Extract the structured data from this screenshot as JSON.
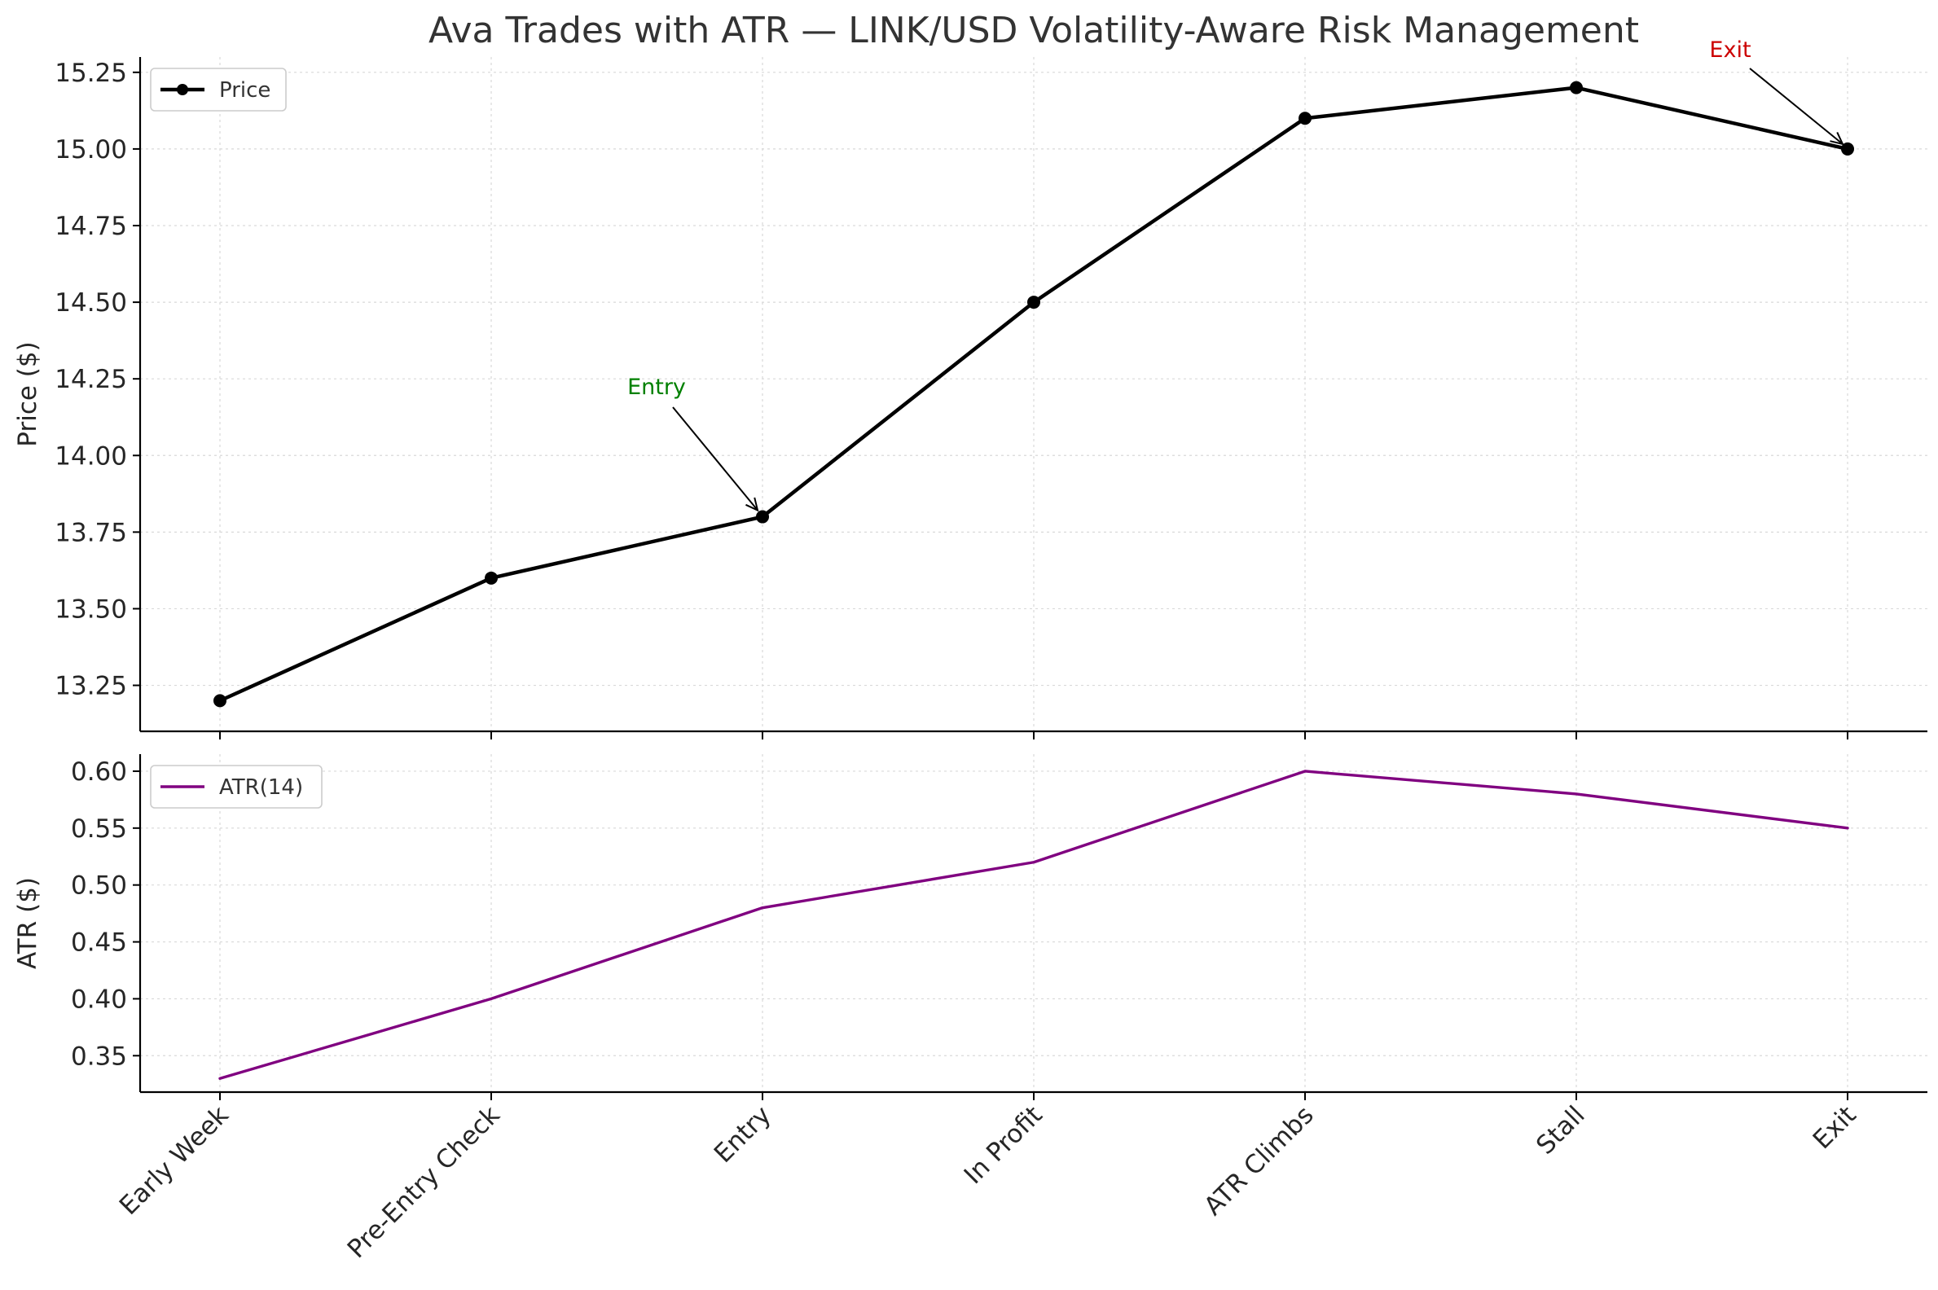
{
  "chart_data": {
    "type": "line",
    "title": "Ava Trades with ATR — LINK/USD Volatility-Aware Risk Management",
    "categories": [
      "Early Week",
      "Pre-Entry Check",
      "Entry",
      "In Profit",
      "ATR Climbs",
      "Stall",
      "Exit"
    ],
    "panels": [
      {
        "id": "price",
        "ylabel": "Price ($)",
        "ylim": [
          13.1,
          15.3
        ],
        "yticks": [
          "13.25",
          "13.50",
          "13.75",
          "14.00",
          "14.25",
          "14.50",
          "14.75",
          "15.00",
          "15.25"
        ],
        "grid": true,
        "legend_position": "top-left",
        "series": [
          {
            "name": "Price",
            "values": [
              13.2,
              13.6,
              13.8,
              14.5,
              15.1,
              15.2,
              15.0
            ],
            "color": "#000000",
            "markers": true
          }
        ],
        "annotations": [
          {
            "text": "Entry",
            "category_index": 2,
            "value": 13.8,
            "color": "#008000"
          },
          {
            "text": "Exit",
            "category_index": 6,
            "value": 15.0,
            "color": "#cc0000"
          }
        ]
      },
      {
        "id": "atr",
        "ylabel": "ATR ($)",
        "ylim": [
          0.318,
          0.615
        ],
        "yticks": [
          "0.35",
          "0.40",
          "0.45",
          "0.50",
          "0.55",
          "0.60"
        ],
        "grid": true,
        "legend_position": "top-left",
        "series": [
          {
            "name": "ATR(14)",
            "values": [
              0.33,
              0.4,
              0.48,
              0.52,
              0.6,
              0.58,
              0.55
            ],
            "color": "#800080",
            "markers": false
          }
        ]
      }
    ]
  }
}
